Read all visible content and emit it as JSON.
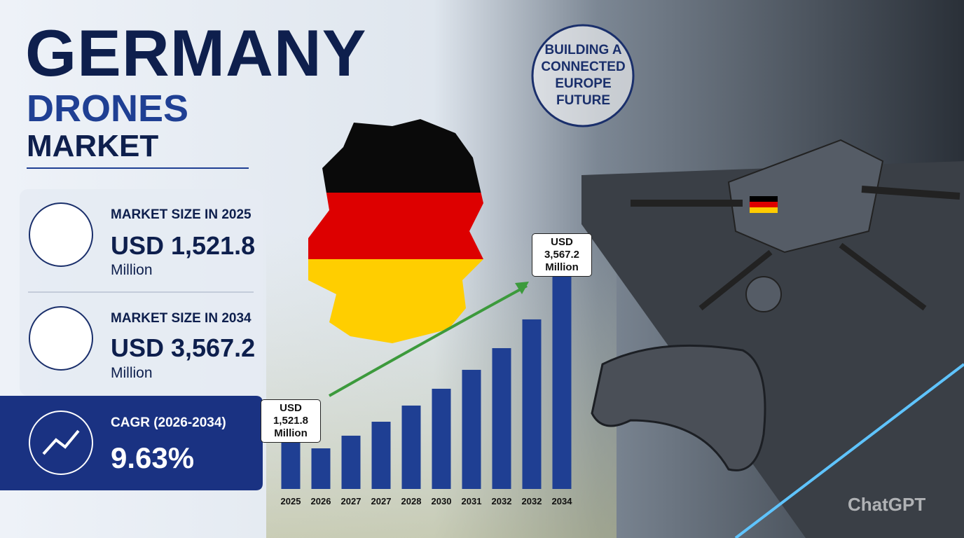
{
  "header": {
    "title": "GERMANY",
    "subtitle": "DRONES",
    "subtitle2": "MARKET"
  },
  "badge": {
    "lines": [
      "BUILDING A",
      "CONNECTED",
      "EUROPE",
      "FUTURE"
    ]
  },
  "stats": [
    {
      "label": "MARKET SIZE IN 2025",
      "value": "USD 1,521.8",
      "unit": "Million"
    },
    {
      "label": "MARKET SIZE IN 2034",
      "value": "USD 3,567.2",
      "unit": "Million"
    }
  ],
  "cagr": {
    "label": "CAGR (2026-2034)",
    "value": "9.63%"
  },
  "watermark": "ChatGPT",
  "chart_data": {
    "type": "bar",
    "categories": [
      "2025",
      "2026",
      "2027",
      "2027",
      "2028",
      "2030",
      "2031",
      "2032",
      "2032",
      "2034"
    ],
    "values": [
      1521.8,
      1400,
      1556,
      1728,
      1927,
      2134,
      2367,
      2634,
      2988,
      3567.2
    ],
    "value_labels": [
      "USD 1,521.8 Million",
      null,
      null,
      null,
      null,
      null,
      null,
      null,
      null,
      "USD 3,567.2 Million"
    ],
    "color": "#1f3f93",
    "ylim": [
      900,
      3600
    ]
  }
}
